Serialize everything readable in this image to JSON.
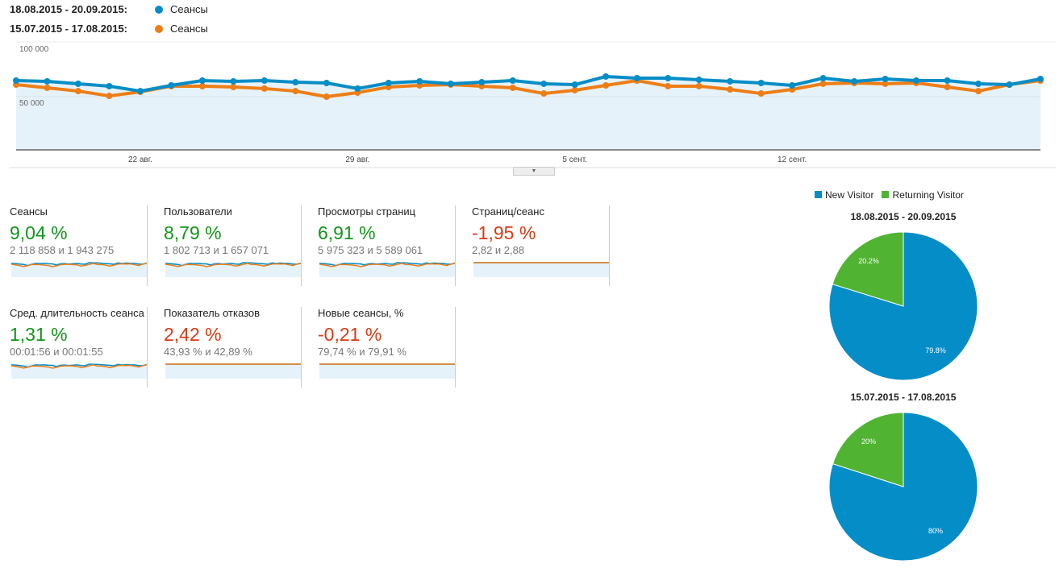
{
  "legend": [
    {
      "range": "18.08.2015 - 20.09.2015:",
      "metric": "Сеансы",
      "color": "#058dc7"
    },
    {
      "range": "15.07.2015 - 17.08.2015:",
      "metric": "Сеансы",
      "color": "#ed7e17"
    }
  ],
  "chart_data": {
    "type": "line",
    "y_ticks": [
      "100 000",
      "50 000"
    ],
    "ylim": [
      0,
      100000
    ],
    "x_ticks": [
      {
        "label": "22 авг.",
        "index": 4
      },
      {
        "label": "29 авг.",
        "index": 11
      },
      {
        "label": "5 сент.",
        "index": 18
      },
      {
        "label": "12 сент.",
        "index": 25
      }
    ],
    "series": [
      {
        "name": "18.08.2015 - 20.09.2015 Сеансы",
        "color": "#058dc7",
        "values": [
          64700,
          64000,
          61800,
          59600,
          55100,
          60300,
          64700,
          64000,
          64700,
          63200,
          62500,
          57400,
          62500,
          64000,
          61800,
          63200,
          64700,
          61800,
          61000,
          68400,
          66900,
          66900,
          65400,
          64000,
          62500,
          60300,
          66900,
          64000,
          66200,
          64700,
          64700,
          61800,
          61000,
          66200
        ]
      },
      {
        "name": "15.07.2015 - 17.08.2015 Сеансы",
        "color": "#ed7e17",
        "values": [
          61000,
          58100,
          55100,
          50700,
          54400,
          59600,
          59600,
          58800,
          57400,
          55100,
          50000,
          53700,
          58800,
          60300,
          61000,
          59600,
          58100,
          52900,
          55900,
          60300,
          64700,
          59600,
          59600,
          56600,
          52900,
          56600,
          61800,
          62500,
          61800,
          62500,
          58800,
          55100,
          61000,
          64700
        ]
      }
    ]
  },
  "metrics": [
    {
      "title": "Сеансы",
      "pct": "9,04 %",
      "cmp": "2 118 858 и 1 943 275",
      "good": true
    },
    {
      "title": "Пользователи",
      "pct": "8,79 %",
      "cmp": "1 802 713 и 1 657 071",
      "good": true
    },
    {
      "title": "Просмотры страниц",
      "pct": "6,91 %",
      "cmp": "5 975 323 и 5 589 061",
      "good": true
    },
    {
      "title": "Страниц/сеанс",
      "pct": "-1,95 %",
      "cmp": "2,82 и 2,88",
      "good": false
    },
    {
      "title": "Сред. длительность сеанса",
      "pct": "1,31 %",
      "cmp": "00:01:56 и 00:01:55",
      "good": true
    },
    {
      "title": "Показатель отказов",
      "pct": "2,42 %",
      "cmp": "43,93 % и 42,89 %",
      "good": false
    },
    {
      "title": "Новые сеансы, %",
      "pct": "-0,21 %",
      "cmp": "79,74 % и 79,91 %",
      "good": false
    }
  ],
  "pies": {
    "legend": [
      {
        "label": "New Visitor",
        "color": "#058dc7"
      },
      {
        "label": "Returning Visitor",
        "color": "#50b432"
      }
    ],
    "charts": [
      {
        "title": "18.08.2015 - 20.09.2015",
        "new": 79.8,
        "returning": 20.2,
        "new_label": "79.8%",
        "returning_label": "20.2%"
      },
      {
        "title": "15.07.2015 - 17.08.2015",
        "new": 80,
        "returning": 20,
        "new_label": "80%",
        "returning_label": "20%"
      }
    ]
  }
}
